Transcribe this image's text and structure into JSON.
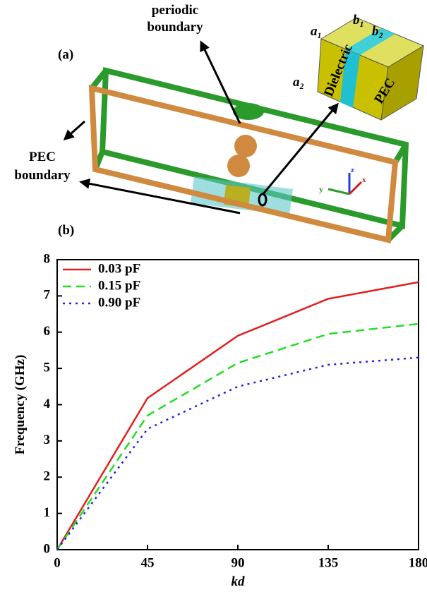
{
  "figure": {
    "panel_a_label": "(a)",
    "panel_b_label": "(b)",
    "periodic_boundary": [
      "periodic",
      "boundary"
    ],
    "pec_boundary": [
      "PEC",
      "boundary"
    ],
    "cube": {
      "a1": "a₁",
      "a2": "a₂",
      "b1": "b₁",
      "b2": "b₂",
      "dielectric": "Dielectric",
      "pec": "PEC"
    },
    "axis_labels": {
      "x": "y",
      "y": "z",
      "z": "x"
    }
  },
  "chart_data": {
    "type": "line",
    "xlabel": "kd",
    "ylabel": "Frequency (GHz)",
    "x": [
      0,
      45,
      90,
      135,
      180
    ],
    "series": [
      {
        "name": "0.03 pF",
        "color": "#e02020",
        "dash": "solid",
        "values": [
          0,
          4.18,
          5.9,
          6.92,
          7.38
        ]
      },
      {
        "name": "0.15 pF",
        "color": "#22dd22",
        "dash": "dashed",
        "values": [
          0,
          3.7,
          5.15,
          5.95,
          6.23
        ]
      },
      {
        "name": "0.90 pF",
        "color": "#2222dd",
        "dash": "dotted",
        "values": [
          0,
          3.33,
          4.5,
          5.1,
          5.3
        ]
      }
    ],
    "xlim": [
      0,
      180
    ],
    "xticks": [
      0,
      45,
      90,
      135,
      180
    ],
    "ylim": [
      0,
      8
    ],
    "yticks": [
      0,
      1,
      2,
      3,
      4,
      5,
      6,
      7,
      8
    ],
    "legend": "upper left"
  }
}
